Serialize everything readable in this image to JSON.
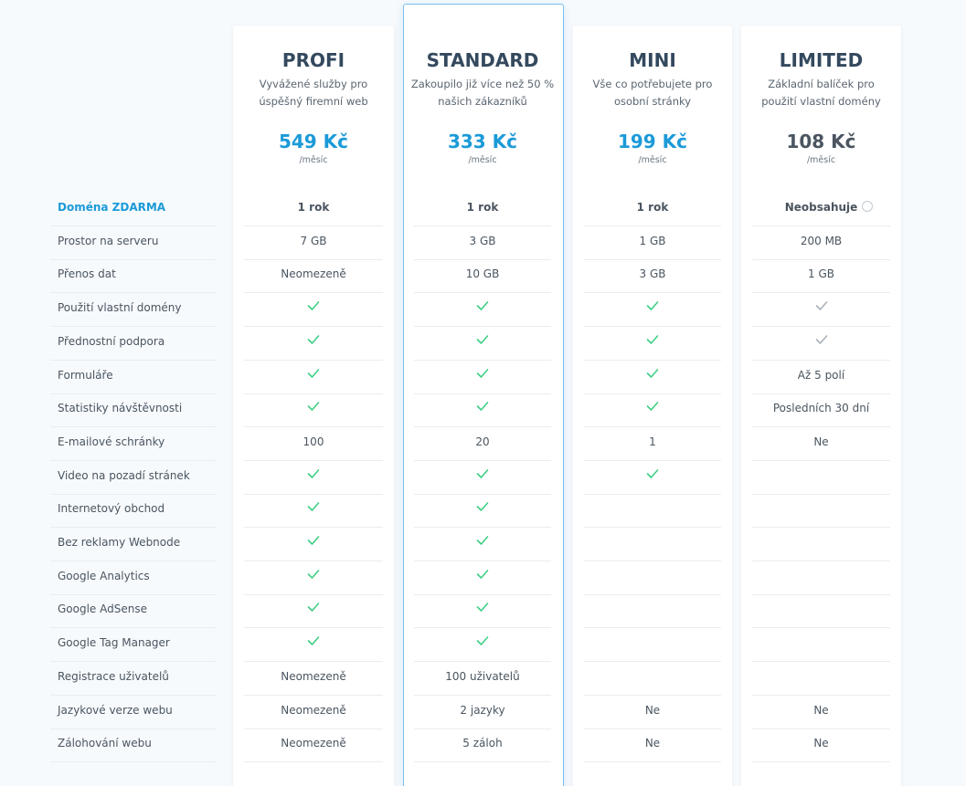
{
  "plans": [
    {
      "name": "PROFI",
      "description": [
        "Vyvážené služby pro",
        "úspěšný firemní web"
      ],
      "price": "549 Kč",
      "period": "/měsíc",
      "price_color": "#1b9ad8",
      "highlighted": false
    },
    {
      "name": "STANDARD",
      "description": [
        "Zakoupilo již více než 50 %",
        "našich zákazníků"
      ],
      "price": "333 Kč",
      "period": "/měsíc",
      "price_color": "#1b9ad8",
      "highlighted": true
    },
    {
      "name": "MINI",
      "description": [
        "Vše co potřebujete pro",
        "osobní stránky"
      ],
      "price": "199 Kč",
      "period": "/měsíc",
      "price_color": "#1b9ad8",
      "highlighted": false
    },
    {
      "name": "LIMITED",
      "description": [
        "Základní balíček pro",
        "použití vlastní domény"
      ],
      "price": "108 Kč",
      "period": "/měsíc",
      "price_color": "#4a5560",
      "highlighted": false
    }
  ],
  "features": [
    {
      "label": "Doména ZDARMA",
      "emphasis": true,
      "values": [
        "1 rok",
        "1 rok",
        "1 rok",
        "Neobsahuje"
      ]
    },
    {
      "label": "Prostor na serveru",
      "values": [
        "7 GB",
        "3 GB",
        "1 GB",
        "200 MB"
      ]
    },
    {
      "label": "Přenos dat",
      "values": [
        "Neomezeně",
        "10 GB",
        "3 GB",
        "1 GB"
      ]
    },
    {
      "label": "Použití vlastní domény",
      "values": [
        {
          "icon": "check"
        },
        {
          "icon": "check"
        },
        {
          "icon": "check"
        },
        {
          "icon": "check-muted"
        }
      ]
    },
    {
      "label": "Přednostní podpora",
      "values": [
        {
          "icon": "check"
        },
        {
          "icon": "check"
        },
        {
          "icon": "check"
        },
        {
          "icon": "check-muted"
        }
      ]
    },
    {
      "label": "Formuláře",
      "values": [
        {
          "icon": "check"
        },
        {
          "icon": "check"
        },
        {
          "icon": "check"
        },
        "Až 5 polí"
      ]
    },
    {
      "label": "Statistiky návštěvnosti",
      "values": [
        {
          "icon": "check"
        },
        {
          "icon": "check"
        },
        {
          "icon": "check"
        },
        "Posledních 30 dní"
      ]
    },
    {
      "label": "E-mailové schránky",
      "values": [
        "100",
        "20",
        "1",
        "Ne"
      ]
    },
    {
      "label": "Video na pozadí stránek",
      "values": [
        {
          "icon": "check"
        },
        {
          "icon": "check"
        },
        {
          "icon": "check"
        },
        null
      ]
    },
    {
      "label": "Internetový obchod",
      "values": [
        {
          "icon": "check"
        },
        {
          "icon": "check"
        },
        null,
        null
      ]
    },
    {
      "label": "Bez reklamy Webnode",
      "values": [
        {
          "icon": "check"
        },
        {
          "icon": "check"
        },
        null,
        null
      ]
    },
    {
      "label": "Google Analytics",
      "values": [
        {
          "icon": "check"
        },
        {
          "icon": "check"
        },
        null,
        null
      ]
    },
    {
      "label": "Google AdSense",
      "values": [
        {
          "icon": "check"
        },
        {
          "icon": "check"
        },
        null,
        null
      ]
    },
    {
      "label": "Google Tag Manager",
      "values": [
        {
          "icon": "check"
        },
        {
          "icon": "check"
        },
        null,
        null
      ]
    },
    {
      "label": "Registrace uživatelů",
      "values": [
        "Neomezeně",
        "100 uživatelů",
        null,
        null
      ]
    },
    {
      "label": "Jazykové verze webu",
      "values": [
        "Neomezeně",
        "2 jazyky",
        "Ne",
        "Ne"
      ]
    },
    {
      "label": "Zálohování webu",
      "values": [
        "Neomezeně",
        "5 záloh",
        "Ne",
        "Ne"
      ]
    }
  ]
}
